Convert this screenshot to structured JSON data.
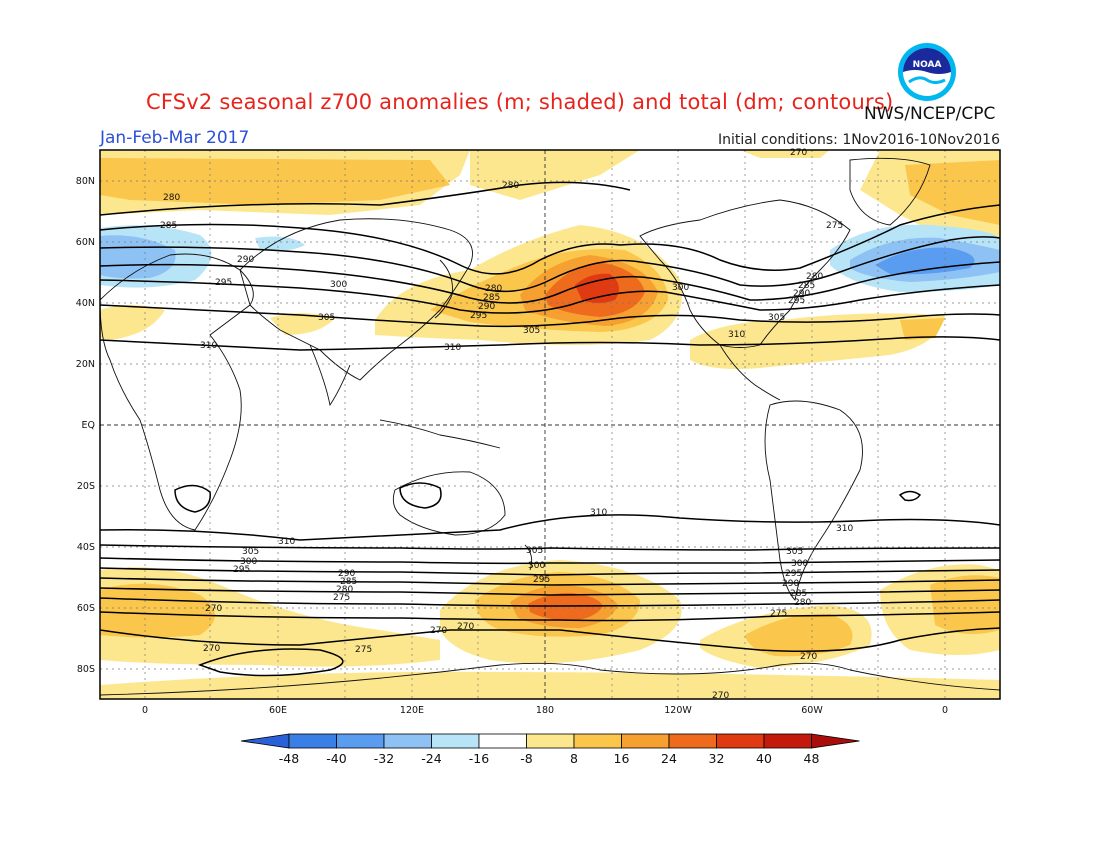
{
  "header": {
    "title": "CFSv2 seasonal z700 anomalies (m; shaded) and total (dm; contours)",
    "agency": "NWS/NCEP/CPC",
    "period": "Jan-Feb-Mar 2017",
    "initial_conditions": "Initial conditions: 1Nov2016-10Nov2016",
    "logo_text": "NOAA"
  },
  "map": {
    "lat_labels": [
      "80N",
      "60N",
      "40N",
      "20N",
      "EQ",
      "20S",
      "40S",
      "60S",
      "80S"
    ],
    "lon_labels": [
      "0",
      "60E",
      "120E",
      "180",
      "120W",
      "60W",
      "0"
    ],
    "contour_labels": [
      "270",
      "275",
      "280",
      "285",
      "290",
      "295",
      "300",
      "305",
      "310"
    ]
  },
  "colorbar": {
    "labels": [
      "-48",
      "-40",
      "-32",
      "-24",
      "-16",
      "-8",
      "8",
      "16",
      "24",
      "32",
      "40",
      "48"
    ],
    "colors": [
      "#2a60d8",
      "#3a7fe6",
      "#5a9cf0",
      "#8ec2f5",
      "#b8e4f7",
      "#ffffff",
      "#fde78e",
      "#fbc64c",
      "#f5a030",
      "#ee6a1c",
      "#e03a12",
      "#c41a0e",
      "#a80f0b"
    ]
  },
  "chart_data": {
    "type": "heatmap",
    "title": "CFSv2 seasonal z700 anomalies (m; shaded) and total (dm; contours)",
    "subtitle": "Jan-Feb-Mar 2017",
    "units_shaded": "m",
    "units_contours": "dm",
    "shade_levels": [
      -48,
      -40,
      -32,
      -24,
      -16,
      -8,
      8,
      16,
      24,
      32,
      40,
      48
    ],
    "contour_levels": [
      270,
      275,
      280,
      285,
      290,
      295,
      300,
      305,
      310
    ],
    "anomaly_centers": [
      {
        "lon": 195,
        "lat": 45,
        "value": 32
      },
      {
        "lon": 190,
        "lat": -60,
        "value": 32
      },
      {
        "lon": 280,
        "lat": -72,
        "value": 16
      },
      {
        "lon": 330,
        "lat": 48,
        "value": -24
      },
      {
        "lon": 345,
        "lat": 80,
        "value": 16
      },
      {
        "lon": 0,
        "lat": 55,
        "value": -16
      }
    ]
  }
}
